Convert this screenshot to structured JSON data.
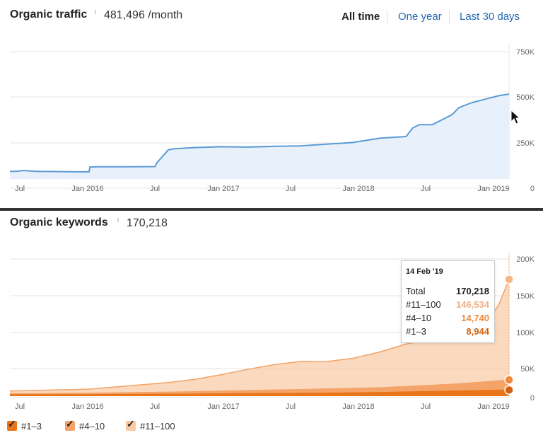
{
  "traffic": {
    "title": "Organic traffic",
    "info": "i",
    "value": "481,496 /month",
    "ranges": [
      "All time",
      "One year",
      "Last 30 days"
    ],
    "active_range": "All time"
  },
  "keywords": {
    "title": "Organic keywords",
    "info": "i",
    "value": "170,218"
  },
  "x_labels": [
    "Jul",
    "Jan 2016",
    "Jul",
    "Jan 2017",
    "Jul",
    "Jan 2018",
    "Jul",
    "Jan 2019"
  ],
  "tooltip": {
    "date": "14 Feb '19",
    "rows": [
      {
        "label": "Total",
        "value": "170,218"
      },
      {
        "label": "#11–100",
        "value": "146,534"
      },
      {
        "label": "#4–10",
        "value": "14,740"
      },
      {
        "label": "#1–3",
        "value": "8,944"
      }
    ]
  },
  "legend": [
    {
      "label": "#1–3"
    },
    {
      "label": "#4–10"
    },
    {
      "label": "#11–100"
    }
  ],
  "colors": {
    "traffic_line": "#5b9bd5",
    "traffic_fill": "#e8f1fb",
    "top3": "#e8751a",
    "pos4_10": "#f4a468",
    "pos11_100": "#f8c9a2",
    "grid": "#e5e5e5"
  },
  "chart_data": [
    {
      "type": "area",
      "title": "Organic traffic",
      "x_tick_labels": [
        "Jul",
        "Jan 2016",
        "Jul",
        "Jan 2017",
        "Jul",
        "Jan 2018",
        "Jul",
        "Jan 2019"
      ],
      "y_tick_labels": [
        "750K",
        "500K",
        "250K",
        "0"
      ],
      "ylim": [
        0,
        750000
      ],
      "x": [
        0,
        0.5,
        1,
        2,
        4,
        5,
        6,
        6.05,
        6.5,
        8,
        9,
        11,
        11.1,
        12,
        12.5,
        14,
        16,
        18,
        20,
        22,
        24,
        25,
        26,
        28,
        30,
        30.5,
        31,
        32,
        33,
        33.5,
        34,
        35,
        36,
        37,
        37.8
      ],
      "series": [
        {
          "name": "Organic traffic",
          "values": [
            45000,
            45000,
            50000,
            45000,
            43000,
            42000,
            42000,
            70000,
            72000,
            72000,
            72000,
            73000,
            92000,
            172000,
            178000,
            185000,
            190000,
            188000,
            192000,
            195000,
            205000,
            210000,
            215000,
            240000,
            250000,
            300000,
            320000,
            320000,
            360000,
            380000,
            420000,
            450000,
            470000,
            490000,
            500000
          ]
        }
      ]
    },
    {
      "type": "area",
      "title": "Organic keywords",
      "x_tick_labels": [
        "Jul",
        "Jan 2016",
        "Jul",
        "Jan 2017",
        "Jul",
        "Jan 2018",
        "Jul",
        "Jan 2019"
      ],
      "y_tick_labels": [
        "200K",
        "150K",
        "100K",
        "50K",
        "0"
      ],
      "ylim": [
        0,
        200000
      ],
      "x": [
        0,
        6,
        12,
        14,
        16,
        18,
        20,
        22,
        24,
        26,
        28,
        30,
        32,
        34,
        36,
        37,
        37.8
      ],
      "series": [
        {
          "name": "#1–3",
          "values": [
            2000,
            2200,
            2800,
            3000,
            3300,
            3600,
            3900,
            4100,
            4400,
            4800,
            5300,
            6000,
            6800,
            7500,
            8200,
            8600,
            8944
          ]
        },
        {
          "name": "#4–10",
          "values": [
            1500,
            2000,
            3000,
            3500,
            4000,
            4500,
            5000,
            5500,
            6000,
            6500,
            7000,
            8000,
            9000,
            10500,
            12500,
            13800,
            14740
          ]
        },
        {
          "name": "#11–100",
          "values": [
            4000,
            6000,
            14000,
            18000,
            24000,
            31000,
            37000,
            41000,
            40000,
            44000,
            52000,
            62000,
            67000,
            71000,
            85000,
            110000,
            146534
          ]
        }
      ],
      "highlight_point": {
        "date": "14 Feb '19",
        "total": 170218
      }
    }
  ]
}
